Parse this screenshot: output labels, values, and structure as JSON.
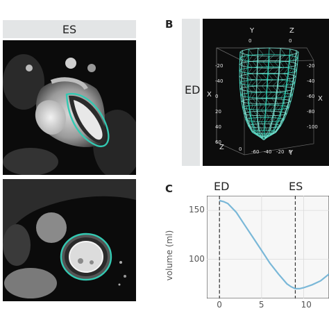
{
  "panels": {
    "a": {
      "header": "ES"
    },
    "b": {
      "letter": "B",
      "side_label": "ED",
      "axis_letters": {
        "y_top": "Y",
        "z_top": "Z",
        "x_left": "X",
        "x_right": "X",
        "z_bottom": "Z",
        "y_bottom": "Y"
      },
      "tick_labels": {
        "top_zero_left": "0",
        "top_zero_right": "0",
        "left": [
          "-20",
          "-40",
          "0",
          "20",
          "40",
          "60"
        ],
        "right": [
          "-20",
          "-40",
          "-60",
          "-80",
          "-100"
        ],
        "bottom": [
          "0",
          "-60",
          "-40",
          "-20",
          "0"
        ]
      },
      "colors": {
        "background": "#0c0c0c",
        "mesh": "#7fe6d6",
        "mesh_dense": "#2fd4b8",
        "grid": "#6a6a6a"
      }
    },
    "c": {
      "letter": "C",
      "marker_labels": {
        "ed": "ED",
        "es": "ES"
      }
    }
  },
  "chart_data": {
    "type": "line",
    "ylabel": "volume (ml)",
    "xlabel": "",
    "xlim": [
      -1.5,
      13
    ],
    "ylim": [
      60,
      165
    ],
    "x_ticks": [
      0,
      5,
      10
    ],
    "y_ticks": [
      100,
      150
    ],
    "vlines": [
      0,
      9
    ],
    "grid": true,
    "line_color": "#7ab8d8",
    "series": [
      {
        "x": [
          0,
          0.5,
          1,
          2,
          3,
          4,
          5,
          6,
          7,
          8,
          8.5,
          9,
          9.5,
          10,
          11,
          12,
          13
        ],
        "y": [
          160,
          159,
          157,
          148,
          135,
          122,
          109,
          96,
          85,
          75,
          72,
          70,
          70,
          71,
          74,
          78,
          85
        ]
      }
    ]
  }
}
